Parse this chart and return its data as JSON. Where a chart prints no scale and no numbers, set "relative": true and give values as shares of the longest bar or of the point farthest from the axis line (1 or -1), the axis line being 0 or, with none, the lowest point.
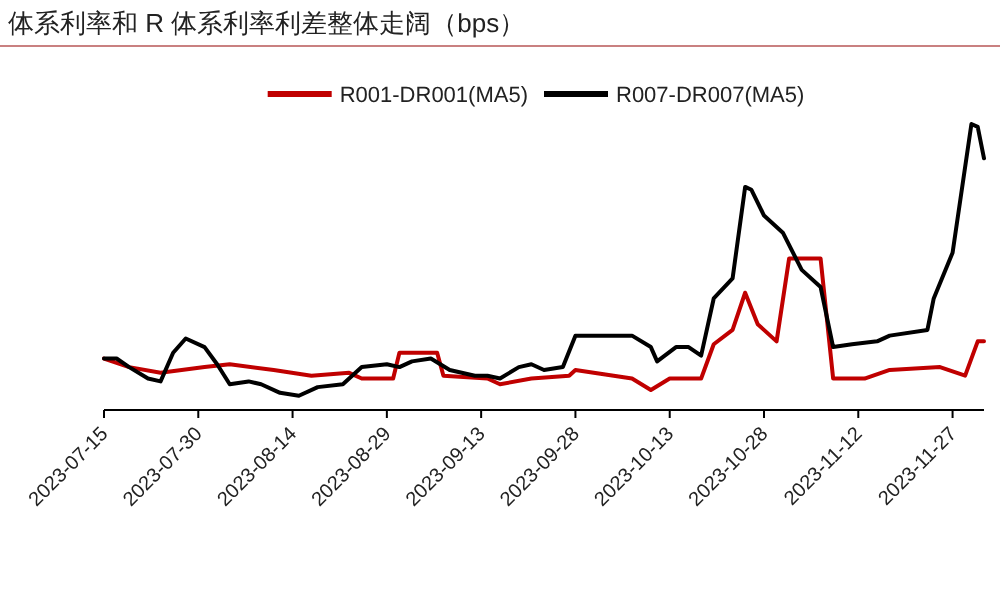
{
  "chart_data": {
    "type": "line",
    "title": "体系利率和 R 体系利率利差整体走阔（bps）",
    "relative": true,
    "legend": "top",
    "grid": false,
    "marker": "none",
    "line_style": "solid",
    "xlim": [
      "2023-07-15",
      "2023-12-02"
    ],
    "xticks": [
      "2023-07-15",
      "2023-07-30",
      "2023-08-14",
      "2023-08-29",
      "2023-09-13",
      "2023-09-28",
      "2023-10-13",
      "2023-10-28",
      "2023-11-12",
      "2023-11-27"
    ],
    "series": [
      {
        "name": "R001-DR001(MA5)",
        "color": "#c00000",
        "x": [
          "2023-07-15",
          "2023-07-19",
          "2023-07-24",
          "2023-07-31",
          "2023-08-04",
          "2023-08-11",
          "2023-08-17",
          "2023-08-23",
          "2023-08-25",
          "2023-08-30",
          "2023-08-31",
          "2023-09-06",
          "2023-09-07",
          "2023-09-14",
          "2023-09-16",
          "2023-09-21",
          "2023-09-27",
          "2023-09-28",
          "2023-10-07",
          "2023-10-10",
          "2023-10-13",
          "2023-10-18",
          "2023-10-20",
          "2023-10-23",
          "2023-10-25",
          "2023-10-27",
          "2023-10-30",
          "2023-11-01",
          "2023-11-06",
          "2023-11-08",
          "2023-11-13",
          "2023-11-17",
          "2023-11-25",
          "2023-11-29",
          "2023-12-01",
          "2023-12-02"
        ],
        "values": [
          0.18,
          0.15,
          0.13,
          0.15,
          0.16,
          0.14,
          0.12,
          0.13,
          0.11,
          0.11,
          0.2,
          0.2,
          0.12,
          0.11,
          0.09,
          0.11,
          0.12,
          0.14,
          0.11,
          0.07,
          0.11,
          0.11,
          0.23,
          0.28,
          0.41,
          0.3,
          0.24,
          0.53,
          0.53,
          0.11,
          0.11,
          0.14,
          0.15,
          0.12,
          0.24,
          0.24
        ]
      },
      {
        "name": "R007-DR007(MA5)",
        "color": "#000000",
        "x": [
          "2023-07-15",
          "2023-07-17",
          "2023-07-19",
          "2023-07-22",
          "2023-07-24",
          "2023-07-26",
          "2023-07-28",
          "2023-07-31",
          "2023-08-02",
          "2023-08-04",
          "2023-08-07",
          "2023-08-09",
          "2023-08-12",
          "2023-08-15",
          "2023-08-18",
          "2023-08-22",
          "2023-08-25",
          "2023-08-29",
          "2023-08-31",
          "2023-09-02",
          "2023-09-05",
          "2023-09-08",
          "2023-09-12",
          "2023-09-14",
          "2023-09-16",
          "2023-09-19",
          "2023-09-21",
          "2023-09-23",
          "2023-09-26",
          "2023-09-28",
          "2023-10-07",
          "2023-10-10",
          "2023-10-11",
          "2023-10-14",
          "2023-10-16",
          "2023-10-18",
          "2023-10-20",
          "2023-10-23",
          "2023-10-25",
          "2023-10-26",
          "2023-10-28",
          "2023-10-31",
          "2023-11-03",
          "2023-11-06",
          "2023-11-08",
          "2023-11-11",
          "2023-11-15",
          "2023-11-17",
          "2023-11-23",
          "2023-11-24",
          "2023-11-27",
          "2023-11-30",
          "2023-12-01",
          "2023-12-02"
        ],
        "values": [
          0.18,
          0.18,
          0.15,
          0.11,
          0.1,
          0.2,
          0.25,
          0.22,
          0.16,
          0.09,
          0.1,
          0.09,
          0.06,
          0.05,
          0.08,
          0.09,
          0.15,
          0.16,
          0.15,
          0.17,
          0.18,
          0.14,
          0.12,
          0.12,
          0.11,
          0.15,
          0.16,
          0.14,
          0.15,
          0.26,
          0.26,
          0.22,
          0.17,
          0.22,
          0.22,
          0.19,
          0.39,
          0.46,
          0.78,
          0.77,
          0.68,
          0.62,
          0.49,
          0.43,
          0.22,
          0.23,
          0.24,
          0.26,
          0.28,
          0.39,
          0.55,
          1,
          0.99,
          0.88
        ]
      }
    ]
  }
}
